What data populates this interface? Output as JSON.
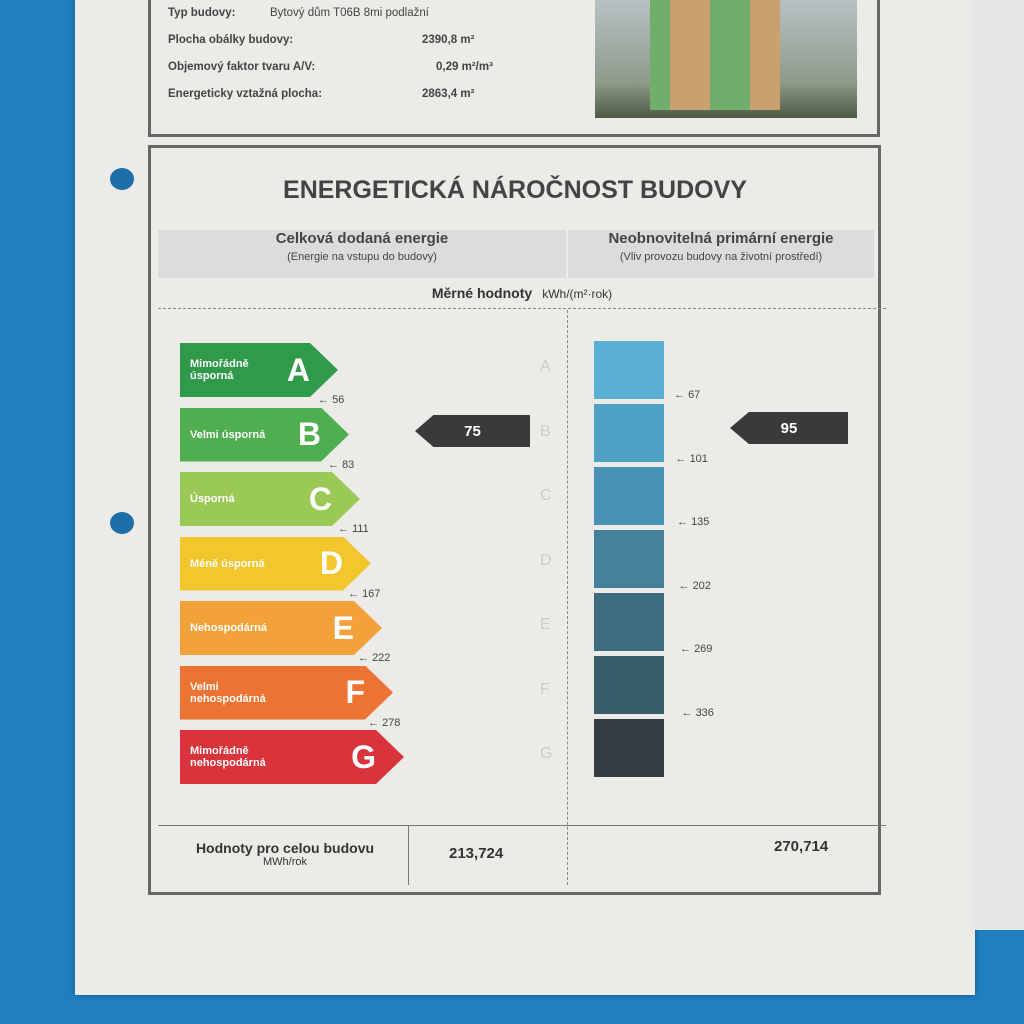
{
  "building": {
    "type_label": "Typ budovy:",
    "type_value": "Bytový dům T06B 8mi podlažní",
    "rows": [
      {
        "label": "Plocha obálky budovy:",
        "value": "2390,8 m²"
      },
      {
        "label": "Objemový faktor tvaru A/V:",
        "value": "0,29 m²/m³"
      },
      {
        "label": "Energeticky vztažná plocha:",
        "value": "2863,4 m²"
      }
    ]
  },
  "title": "ENERGETICKÁ NÁROČNOST BUDOVY",
  "left_header": {
    "title": "Celková dodaná energie",
    "subtitle": "(Energie na vstupu do budovy)"
  },
  "right_header": {
    "title": "Neobnovitelná primární energie",
    "subtitle": "(Vliv provozu budovy na životní prostředí)"
  },
  "unit_label": "Měrné hodnoty",
  "unit": "kWh/(m²·rok)",
  "classes": [
    {
      "name": "Mimořádně úsporná",
      "letter": "A",
      "color": "#2e9a4a"
    },
    {
      "name": "Velmi úsporná",
      "letter": "B",
      "color": "#4fae4f"
    },
    {
      "name": "Úsporná",
      "letter": "C",
      "color": "#9bc955"
    },
    {
      "name": "Méně úsporná",
      "letter": "D",
      "color": "#f2c62d"
    },
    {
      "name": "Nehospodárná",
      "letter": "E",
      "color": "#f3a23a"
    },
    {
      "name": "Velmi nehospodárná",
      "letter": "F",
      "color": "#ec7331"
    },
    {
      "name": "Mimořádně nehospodárná",
      "letter": "G",
      "color": "#d9343b"
    }
  ],
  "left_thresholds": [
    "56",
    "83",
    "111",
    "167",
    "222",
    "278"
  ],
  "right_thresholds": [
    "67",
    "101",
    "135",
    "202",
    "269",
    "336"
  ],
  "right_colors": [
    "#5ab0d4",
    "#4fa2c6",
    "#4893b3",
    "#43809a",
    "#3f6d80",
    "#3a5d6a",
    "#333d42"
  ],
  "left_value": "75",
  "right_value": "95",
  "bottom": {
    "label": "Hodnoty pro celou budovu",
    "unit": "MWh/rok",
    "left": "213,724",
    "right": "270,714"
  }
}
